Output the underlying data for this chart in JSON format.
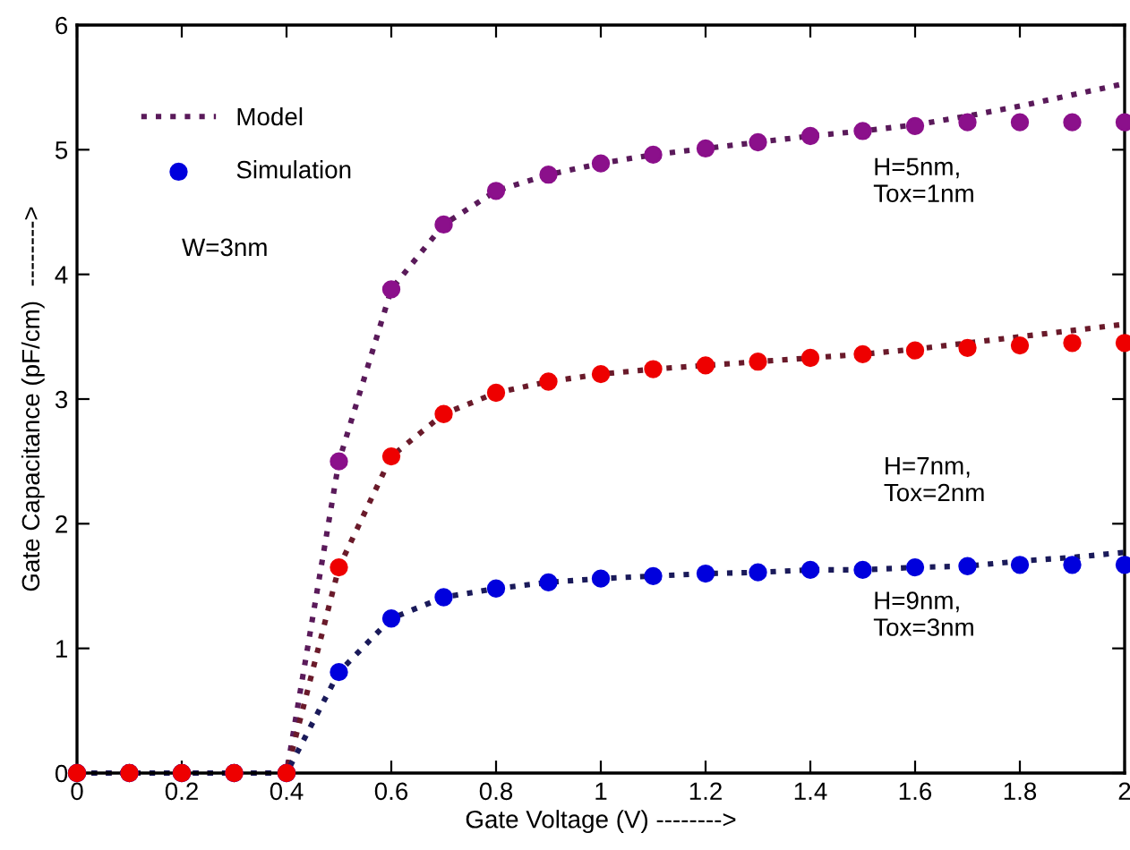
{
  "chart_data": {
    "type": "line",
    "xlabel": "Gate Voltage (V) -------->",
    "ylabel": "Gate Capacitance (pF/cm)  -------->",
    "x": [
      0,
      0.1,
      0.2,
      0.3,
      0.4,
      0.5,
      0.6,
      0.7,
      0.8,
      0.9,
      1.0,
      1.1,
      1.2,
      1.3,
      1.4,
      1.5,
      1.6,
      1.7,
      1.8,
      1.9,
      2.0
    ],
    "series": [
      {
        "name": "Model",
        "color": "#5a1a5a",
        "line_style": "dotted",
        "marker": "none",
        "values": [
          0,
          0,
          0,
          0,
          0,
          2.5,
          3.88,
          4.4,
          4.67,
          4.8,
          4.89,
          4.96,
          5.01,
          5.06,
          5.11,
          5.15,
          5.2,
          5.27,
          5.35,
          5.44,
          5.53
        ]
      },
      {
        "color": "#6a1a2a",
        "line_style": "dotted",
        "marker": "none",
        "values": [
          0,
          0,
          0,
          0,
          0,
          1.65,
          2.54,
          2.88,
          3.05,
          3.14,
          3.2,
          3.24,
          3.27,
          3.3,
          3.33,
          3.36,
          3.4,
          3.45,
          3.5,
          3.55,
          3.6
        ]
      },
      {
        "color": "#1a1a5a",
        "line_style": "dotted",
        "marker": "none",
        "values": [
          0,
          0,
          0,
          0,
          0,
          0.81,
          1.24,
          1.41,
          1.48,
          1.53,
          1.56,
          1.58,
          1.6,
          1.61,
          1.63,
          1.63,
          1.65,
          1.66,
          1.7,
          1.73,
          1.77
        ]
      },
      {
        "type": "scatter",
        "color": "#8b108b",
        "marker": "circle",
        "values": [
          0,
          0,
          0,
          0,
          0,
          2.5,
          3.88,
          4.4,
          4.67,
          4.8,
          4.89,
          4.96,
          5.01,
          5.06,
          5.11,
          5.15,
          5.19,
          5.22,
          5.22,
          5.22,
          5.22
        ]
      },
      {
        "type": "scatter",
        "name": "Simulation",
        "color": "#0000dd",
        "marker": "circle",
        "values": [
          0,
          0,
          0,
          0,
          0,
          0.81,
          1.24,
          1.41,
          1.48,
          1.53,
          1.56,
          1.58,
          1.6,
          1.61,
          1.63,
          1.63,
          1.65,
          1.66,
          1.67,
          1.67,
          1.67
        ]
      },
      {
        "type": "scatter",
        "color": "#ee0000",
        "marker": "circle",
        "values": [
          0,
          0,
          0,
          0,
          0,
          1.65,
          2.54,
          2.88,
          3.05,
          3.14,
          3.2,
          3.24,
          3.27,
          3.3,
          3.33,
          3.36,
          3.39,
          3.41,
          3.43,
          3.45,
          3.45
        ]
      }
    ],
    "xlim": [
      0,
      2
    ],
    "ylim": [
      0,
      6
    ],
    "xticks": [
      0,
      0.2,
      0.4,
      0.6,
      0.8,
      1,
      1.2,
      1.4,
      1.6,
      1.8,
      2
    ],
    "yticks": [
      0,
      1,
      2,
      3,
      4,
      5,
      6
    ],
    "grid": false,
    "legend": "top left",
    "annotations": [
      "W=3nm",
      "H=5nm,\nTox=1nm",
      "H=7nm,\nTox=2nm",
      "H=9nm,\nTox=3nm"
    ]
  }
}
